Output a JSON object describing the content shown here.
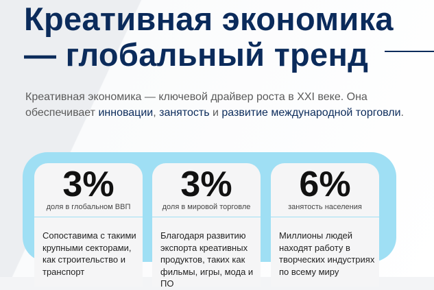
{
  "title": {
    "line1": "Креативная экономика",
    "line2": "— глобальный тренд"
  },
  "lead": {
    "part1": "Креативная экономика — ключевой драйвер роста в XXI веке. Она обеспечивает ",
    "hl1": "инновации",
    "sep1": ", ",
    "hl2": "занятость",
    "sep2": " и ",
    "hl3": "развитие международной торговли",
    "end": "."
  },
  "colors": {
    "title": "#0b2b5b",
    "panel": "#9fdff4",
    "card": "#f5f5f6"
  },
  "cards": [
    {
      "value": "3%",
      "label": "доля в глобальном ВВП",
      "text": "Сопоставима с такими крупными секторами, как строительство и транспорт"
    },
    {
      "value": "3%",
      "label": "доля в мировой торговле",
      "text": "Благодаря развитию экспорта креативных продуктов, таких как фильмы, игры, мода и ПО"
    },
    {
      "value": "6%",
      "label": "занятость населения",
      "text": "Миллионы людей находят работу в творческих индустриях по всему миру"
    }
  ]
}
